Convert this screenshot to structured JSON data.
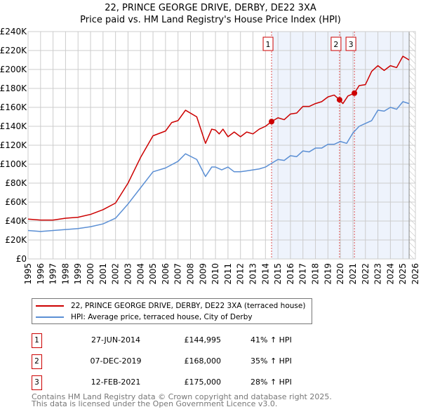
{
  "chart_data": {
    "type": "line",
    "title": "22, PRINCE GEORGE DRIVE, DERBY, DE22 3XA",
    "subtitle": "Price paid vs. HM Land Registry's House Price Index (HPI)",
    "xlim": [
      1995,
      2026
    ],
    "ylim": [
      0,
      240000
    ],
    "x_ticks": [
      "1995",
      "1996",
      "1997",
      "1998",
      "1999",
      "2000",
      "2001",
      "2002",
      "2003",
      "2004",
      "2005",
      "2006",
      "2007",
      "2008",
      "2009",
      "2010",
      "2011",
      "2012",
      "2013",
      "2014",
      "2015",
      "2016",
      "2017",
      "2018",
      "2019",
      "2020",
      "2021",
      "2022",
      "2023",
      "2024",
      "2025",
      "2026"
    ],
    "y_ticks": [
      "£0",
      "£20K",
      "£40K",
      "£60K",
      "£80K",
      "£100K",
      "£120K",
      "£140K",
      "£160K",
      "£180K",
      "£200K",
      "£220K",
      "£240K"
    ],
    "grid": true,
    "shaded_from": 2014.49,
    "hatched_from": 2025.5,
    "series": [
      {
        "name": "22, PRINCE GEORGE DRIVE, DERBY, DE22 3XA (terraced house)",
        "color": "#cc0000",
        "x": [
          1995,
          1996,
          1997,
          1998,
          1999,
          2000,
          2001,
          2002,
          2003,
          2004,
          2005,
          2006,
          2006.5,
          2007,
          2007.6,
          2008.5,
          2009,
          2009.2,
          2009.7,
          2010,
          2010.3,
          2010.6,
          2011,
          2011.5,
          2012,
          2012.5,
          2013,
          2013.5,
          2014,
          2014.49,
          2015,
          2015.5,
          2016,
          2016.5,
          2017,
          2017.5,
          2018,
          2018.5,
          2019,
          2019.5,
          2019.93,
          2020.2,
          2020.6,
          2021.12,
          2021.5,
          2022,
          2022.5,
          2023,
          2023.5,
          2024,
          2024.5,
          2025,
          2025.5
        ],
        "y": [
          42,
          41,
          41,
          43,
          44,
          47,
          52,
          59,
          80,
          107,
          130,
          135,
          144,
          146,
          157,
          150,
          130,
          122,
          137,
          136,
          132,
          137,
          129,
          134,
          129,
          134,
          132,
          137,
          140,
          145,
          149,
          147,
          153,
          154,
          161,
          161,
          164,
          166,
          171,
          173,
          168,
          164,
          172,
          175,
          183,
          184,
          198,
          204,
          199,
          204,
          202,
          214,
          210
        ]
      },
      {
        "name": "HPI: Average price, terraced house, City of Derby",
        "color": "#5b8fd4",
        "x": [
          1995,
          1996,
          1997,
          1998,
          1999,
          2000,
          2001,
          2002,
          2003,
          2004,
          2005,
          2006,
          2007,
          2007.6,
          2008.5,
          2009.2,
          2009.7,
          2010,
          2010.5,
          2011,
          2011.5,
          2012,
          2012.5,
          2013,
          2013.5,
          2014,
          2014.5,
          2015,
          2015.5,
          2016,
          2016.5,
          2017,
          2017.5,
          2018,
          2018.5,
          2019,
          2019.5,
          2020,
          2020.5,
          2021,
          2021.5,
          2022,
          2022.5,
          2023,
          2023.5,
          2024,
          2024.5,
          2025,
          2025.5
        ],
        "y": [
          30,
          29,
          30,
          31,
          32,
          34,
          37,
          43,
          58,
          75,
          92,
          96,
          103,
          111,
          105,
          87,
          97,
          97,
          94,
          97,
          92,
          92,
          93,
          94,
          95,
          97,
          101,
          105,
          104,
          109,
          108,
          114,
          113,
          117,
          117,
          121,
          121,
          124,
          122,
          133,
          140,
          143,
          146,
          157,
          156,
          160,
          158,
          166,
          164
        ]
      }
    ],
    "y_units": "thousands GBP",
    "sales": [
      {
        "n": "1",
        "x": 2014.49,
        "y": 145,
        "date": "27-JUN-2014",
        "price": "£144,995",
        "hpi": "41% ↑ HPI"
      },
      {
        "n": "2",
        "x": 2019.93,
        "y": 168,
        "date": "07-DEC-2019",
        "price": "£168,000",
        "hpi": "35% ↑ HPI"
      },
      {
        "n": "3",
        "x": 2021.12,
        "y": 175,
        "date": "12-FEB-2021",
        "price": "£175,000",
        "hpi": "28% ↑ HPI"
      }
    ],
    "legend_position": "below"
  },
  "footer": {
    "line1": "Contains HM Land Registry data © Crown copyright and database right 2025.",
    "line2": "This data is licensed under the Open Government Licence v3.0."
  }
}
